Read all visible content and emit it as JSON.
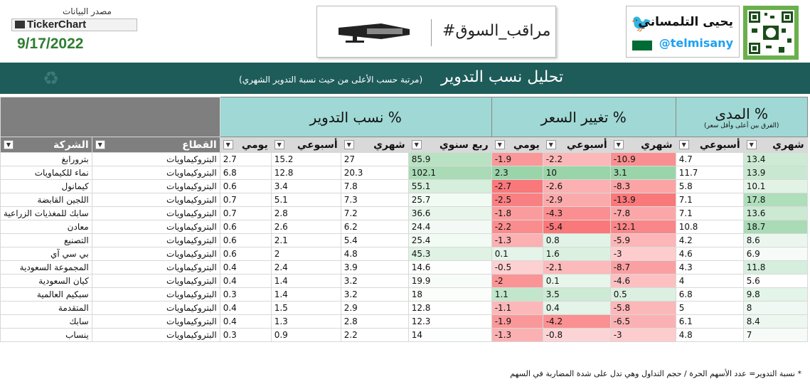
{
  "header": {
    "data_source_label": "مصدر البيانات",
    "ticker_logo": "TickerChart",
    "date": "9/17/2022",
    "market_watch": "#مراقب_السوق",
    "author_name": "يحيى التلمساني",
    "author_handle": "@telmisany"
  },
  "band": {
    "title": "تحليل نسب التدوير",
    "subtitle": "(مرتبة حسب الأعلى من حيث نسبة التدوير الشهري)"
  },
  "groups": {
    "range": "المدى %",
    "range_note": "(الفرق بين أعلى وأقل سعر)",
    "price": "تغيير السعر %",
    "turnover": "نسب التدوير %"
  },
  "columns": {
    "range_monthly": "شهري",
    "range_weekly": "أسبوعي",
    "price_monthly": "شهري",
    "price_weekly": "أسبوعي",
    "price_daily": "يومي",
    "to_quarter": "ربع سنوي",
    "to_monthly": "شهري",
    "to_weekly": "أسبوعي",
    "to_daily": "يومي",
    "sector": "القطاع",
    "company": "الشركة"
  },
  "colors": {
    "band": "#1e5c5a",
    "group_header": "#9fd8d5",
    "green": "#63be7b",
    "red": "#f8696b"
  },
  "rows": [
    {
      "company": "بترورابغ",
      "sector": "البتروكيماويات",
      "to_d": "2.7",
      "to_w": "15.2",
      "to_m": "27",
      "to_q": "85.9",
      "p_d": "-1.9",
      "p_w": "-2.2",
      "p_m": "-10.9",
      "r_w": "4.7",
      "r_m": "13.4"
    },
    {
      "company": "نماء للكيماويات",
      "sector": "البتروكيماويات",
      "to_d": "6.8",
      "to_w": "12.8",
      "to_m": "20.3",
      "to_q": "102.1",
      "p_d": "2.3",
      "p_w": "10",
      "p_m": "3.1",
      "r_w": "11.7",
      "r_m": "13.9"
    },
    {
      "company": "كيمانول",
      "sector": "البتروكيماويات",
      "to_d": "0.6",
      "to_w": "3.4",
      "to_m": "7.8",
      "to_q": "55.1",
      "p_d": "-2.7",
      "p_w": "-2.6",
      "p_m": "-8.3",
      "r_w": "5.8",
      "r_m": "10.1"
    },
    {
      "company": "اللجين القابضة",
      "sector": "البتروكيماويات",
      "to_d": "0.7",
      "to_w": "5.1",
      "to_m": "7.3",
      "to_q": "25.7",
      "p_d": "-2.5",
      "p_w": "-2.9",
      "p_m": "-13.9",
      "r_w": "7.1",
      "r_m": "17.8"
    },
    {
      "company": "سابك للمغذيات الزراعية",
      "sector": "البتروكيماويات",
      "to_d": "0.7",
      "to_w": "2.8",
      "to_m": "7.2",
      "to_q": "36.6",
      "p_d": "-1.8",
      "p_w": "-4.3",
      "p_m": "-7.8",
      "r_w": "7.1",
      "r_m": "13.6"
    },
    {
      "company": "معادن",
      "sector": "البتروكيماويات",
      "to_d": "0.6",
      "to_w": "2.6",
      "to_m": "6.2",
      "to_q": "24.4",
      "p_d": "-2.2",
      "p_w": "-5.4",
      "p_m": "-12.1",
      "r_w": "10.8",
      "r_m": "18.7"
    },
    {
      "company": "التصنيع",
      "sector": "البتروكيماويات",
      "to_d": "0.6",
      "to_w": "2.1",
      "to_m": "5.4",
      "to_q": "25.4",
      "p_d": "-1.3",
      "p_w": "0.8",
      "p_m": "-5.9",
      "r_w": "4.2",
      "r_m": "8.6"
    },
    {
      "company": "بي سي آي",
      "sector": "البتروكيماويات",
      "to_d": "0.6",
      "to_w": "2",
      "to_m": "4.8",
      "to_q": "45.3",
      "p_d": "0.1",
      "p_w": "1.6",
      "p_m": "-3",
      "r_w": "4.6",
      "r_m": "6.9"
    },
    {
      "company": "المجموعة السعودية",
      "sector": "البتروكيماويات",
      "to_d": "0.4",
      "to_w": "2.4",
      "to_m": "3.9",
      "to_q": "14.6",
      "p_d": "-0.5",
      "p_w": "-2.1",
      "p_m": "-8.7",
      "r_w": "4.3",
      "r_m": "11.8"
    },
    {
      "company": "كيان السعودية",
      "sector": "البتروكيماويات",
      "to_d": "0.4",
      "to_w": "1.4",
      "to_m": "3.2",
      "to_q": "19.9",
      "p_d": "-2",
      "p_w": "0.1",
      "p_m": "-4.6",
      "r_w": "4",
      "r_m": "5.6"
    },
    {
      "company": "سبكيم العالمية",
      "sector": "البتروكيماويات",
      "to_d": "0.3",
      "to_w": "1.4",
      "to_m": "3.2",
      "to_q": "18",
      "p_d": "1.1",
      "p_w": "3.5",
      "p_m": "0.5",
      "r_w": "6.8",
      "r_m": "9.8"
    },
    {
      "company": "المتقدمة",
      "sector": "البتروكيماويات",
      "to_d": "0.4",
      "to_w": "1.5",
      "to_m": "2.9",
      "to_q": "12.8",
      "p_d": "-1.1",
      "p_w": "0.4",
      "p_m": "-5.8",
      "r_w": "5",
      "r_m": "8"
    },
    {
      "company": "سابك",
      "sector": "البتروكيماويات",
      "to_d": "0.4",
      "to_w": "1.3",
      "to_m": "2.8",
      "to_q": "12.3",
      "p_d": "-1.9",
      "p_w": "-4.2",
      "p_m": "-6.5",
      "r_w": "6.1",
      "r_m": "8.4"
    },
    {
      "company": "ينساب",
      "sector": "البتروكيماويات",
      "to_d": "0.3",
      "to_w": "0.9",
      "to_m": "2.2",
      "to_q": "14",
      "p_d": "-1.3",
      "p_w": "-0.8",
      "p_m": "-3",
      "r_w": "4.8",
      "r_m": "7"
    }
  ],
  "footnote": "* نسبة التدوير= عدد الأسهم الحرة / حجم التداول وهي تدل على شدة المضاربة في السهم"
}
